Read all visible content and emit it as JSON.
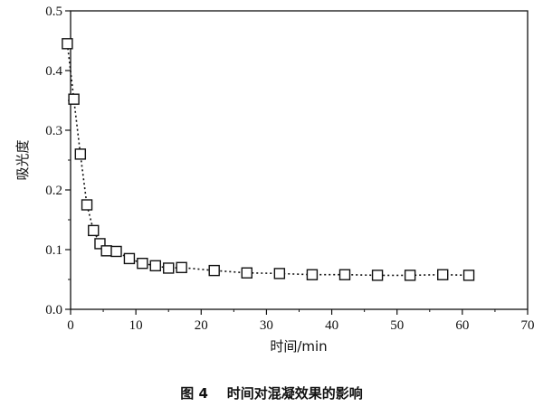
{
  "chart_data": {
    "type": "scatter",
    "xlabel": "时间/min",
    "ylabel": "吸光度",
    "caption": "图 4    时间对混凝效果的影响",
    "xlim": [
      0,
      70
    ],
    "ylim": [
      0.0,
      0.5
    ],
    "x_ticks": [
      "0",
      "10",
      "20",
      "30",
      "40",
      "50",
      "60",
      "70"
    ],
    "y_ticks": [
      "0.0",
      "0.1",
      "0.2",
      "0.3",
      "0.4",
      "0.5"
    ],
    "grid": false,
    "legend": "none",
    "marker": "open-square",
    "line_style": "dotted",
    "color": "#111111",
    "series": [
      {
        "x": [
          -0.5,
          0.5,
          1.5,
          2.5,
          3.5,
          4.5,
          5.5,
          7,
          9,
          11,
          13,
          15,
          17,
          22,
          27,
          32,
          37,
          42,
          47,
          52,
          57,
          61
        ],
        "y": [
          0.445,
          0.352,
          0.26,
          0.175,
          0.132,
          0.11,
          0.098,
          0.097,
          0.085,
          0.077,
          0.073,
          0.069,
          0.07,
          0.065,
          0.061,
          0.06,
          0.058,
          0.058,
          0.057,
          0.057,
          0.058,
          0.057
        ]
      }
    ]
  }
}
